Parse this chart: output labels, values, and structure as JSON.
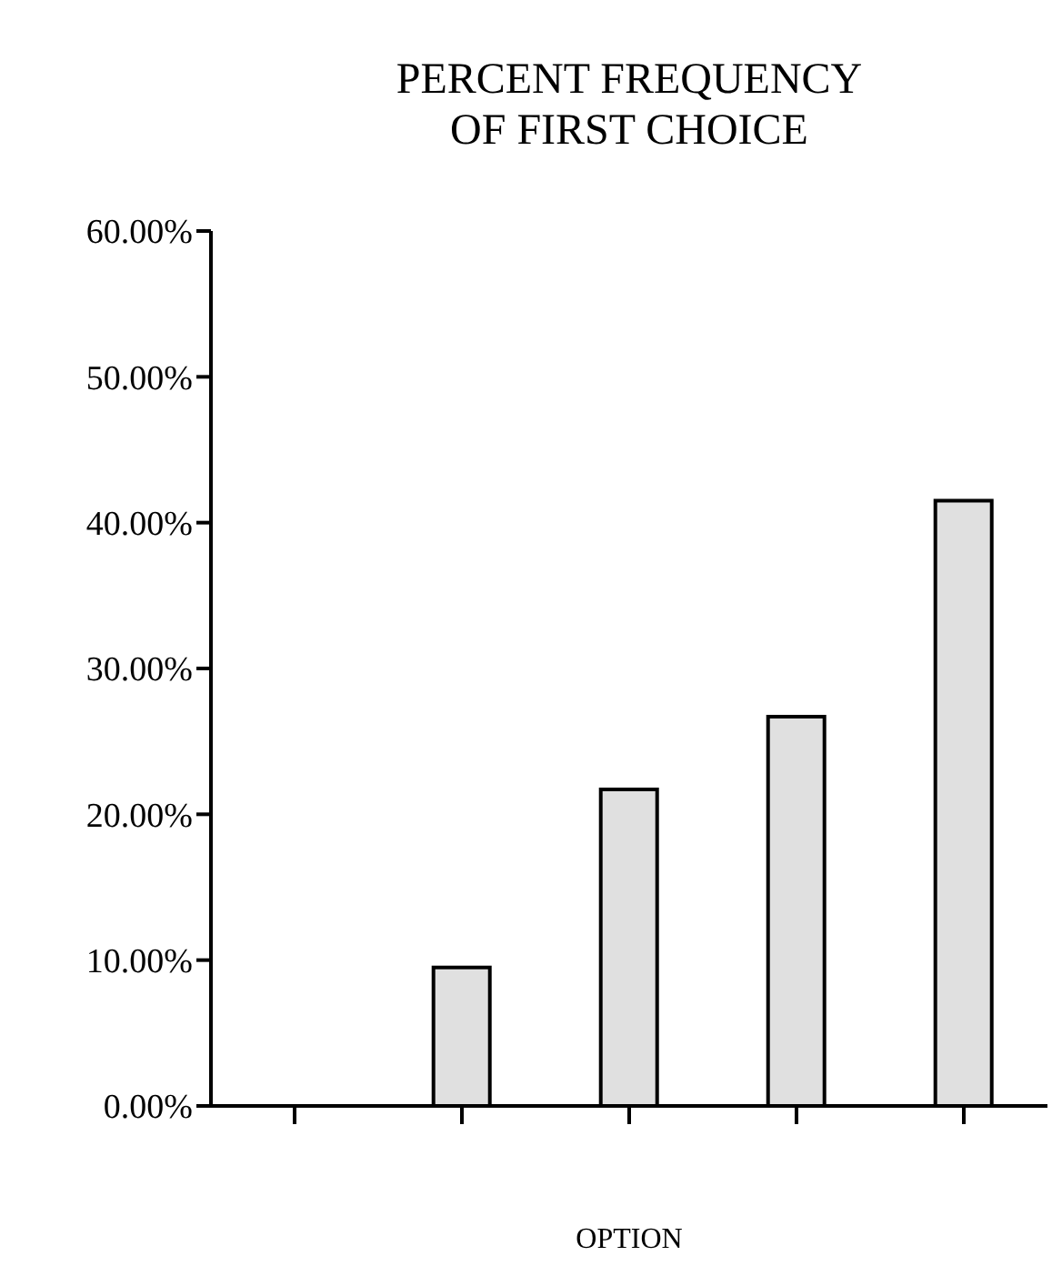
{
  "chart_data": {
    "type": "bar",
    "title": "PERCENT FREQUENCY\nOF FIRST CHOICE",
    "xlabel": "OPTION",
    "categories": [
      null,
      null,
      null,
      null,
      null
    ],
    "values": [
      0,
      9.5,
      21.7,
      26.7,
      41.5
    ],
    "color": "#e0e0e0",
    "ylim": [
      0,
      60
    ],
    "yticks": [
      {
        "value": 0,
        "label": "0.00%"
      },
      {
        "value": 10,
        "label": "10.00%"
      },
      {
        "value": 20,
        "label": "20.00%"
      },
      {
        "value": 30,
        "label": "30.00%"
      },
      {
        "value": 40,
        "label": "40.00%"
      },
      {
        "value": 50,
        "label": "50.00%"
      },
      {
        "value": 60,
        "label": "60.00%"
      }
    ],
    "grid": false,
    "legend": false
  }
}
